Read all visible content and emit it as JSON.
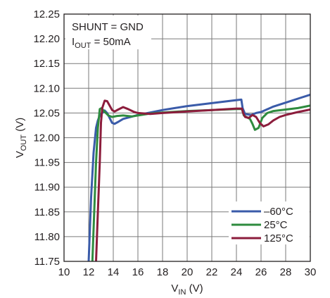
{
  "chart_data": {
    "type": "line",
    "xlabel": {
      "main": "V",
      "sub": "IN",
      "unit": " (V)"
    },
    "ylabel": {
      "main": "V",
      "sub": "OUT",
      "unit": " (V)"
    },
    "xlim": [
      10,
      30
    ],
    "ylim": [
      11.75,
      12.25
    ],
    "x_ticks": [
      "10",
      "12",
      "14",
      "16",
      "18",
      "20",
      "22",
      "24",
      "26",
      "28",
      "30"
    ],
    "y_ticks": [
      "12.25",
      "12.20",
      "12.15",
      "12.10",
      "12.05",
      "12.00",
      "11.95",
      "11.90",
      "11.85",
      "11.80",
      "11.75"
    ],
    "grid": true,
    "annotations": [
      {
        "main": "SHUNT = GND",
        "sub": "",
        "rest": ""
      },
      {
        "main": "I",
        "sub": "OUT",
        "rest": " = 50mA"
      }
    ],
    "legend_position": "bottom-right",
    "series": [
      {
        "name": "–60°C",
        "color": "#3a5ba9",
        "points": [
          [
            12.0,
            11.75
          ],
          [
            12.2,
            11.88
          ],
          [
            12.4,
            11.97
          ],
          [
            12.6,
            12.02
          ],
          [
            12.75,
            12.035
          ],
          [
            12.9,
            12.045
          ],
          [
            13.1,
            12.05
          ],
          [
            13.3,
            12.055
          ],
          [
            13.5,
            12.05
          ],
          [
            13.7,
            12.04
          ],
          [
            13.9,
            12.03
          ],
          [
            14.1,
            12.028
          ],
          [
            14.4,
            12.032
          ],
          [
            14.8,
            12.038
          ],
          [
            15.4,
            12.042
          ],
          [
            16,
            12.046
          ],
          [
            17,
            12.051
          ],
          [
            18,
            12.056
          ],
          [
            19,
            12.06
          ],
          [
            20,
            12.064
          ],
          [
            21,
            12.067
          ],
          [
            22,
            12.07
          ],
          [
            23,
            12.073
          ],
          [
            24,
            12.076
          ],
          [
            24.4,
            12.077
          ],
          [
            24.5,
            12.06
          ],
          [
            24.7,
            12.048
          ],
          [
            25.2,
            12.046
          ],
          [
            25.6,
            12.05
          ],
          [
            26,
            12.052
          ],
          [
            27,
            12.063
          ],
          [
            28,
            12.071
          ],
          [
            29,
            12.079
          ],
          [
            30,
            12.087
          ]
        ]
      },
      {
        "name": "25°C",
        "color": "#2e8b3e",
        "points": [
          [
            12.3,
            11.75
          ],
          [
            12.45,
            11.85
          ],
          [
            12.6,
            11.95
          ],
          [
            12.75,
            12.02
          ],
          [
            12.9,
            12.058
          ],
          [
            13.05,
            12.06
          ],
          [
            13.2,
            12.055
          ],
          [
            13.4,
            12.05
          ],
          [
            13.6,
            12.045
          ],
          [
            13.9,
            12.042
          ],
          [
            14.3,
            12.044
          ],
          [
            14.8,
            12.045
          ],
          [
            15.5,
            12.043
          ],
          [
            16,
            12.045
          ],
          [
            17,
            12.049
          ],
          [
            18,
            12.051
          ],
          [
            20,
            12.054
          ],
          [
            22,
            12.056
          ],
          [
            24,
            12.058
          ],
          [
            24.45,
            12.058
          ],
          [
            24.6,
            12.045
          ],
          [
            24.8,
            12.042
          ],
          [
            25.1,
            12.038
          ],
          [
            25.3,
            12.028
          ],
          [
            25.5,
            12.016
          ],
          [
            25.8,
            12.02
          ],
          [
            26.1,
            12.04
          ],
          [
            26.5,
            12.05
          ],
          [
            27,
            12.054
          ],
          [
            28,
            12.057
          ],
          [
            29,
            12.06
          ],
          [
            30,
            12.065
          ]
        ]
      },
      {
        "name": "125°C",
        "color": "#8c1d3c",
        "points": [
          [
            12.6,
            11.75
          ],
          [
            12.75,
            11.85
          ],
          [
            12.9,
            11.95
          ],
          [
            13.0,
            12.03
          ],
          [
            13.1,
            12.06
          ],
          [
            13.3,
            12.075
          ],
          [
            13.5,
            12.074
          ],
          [
            13.7,
            12.065
          ],
          [
            13.9,
            12.056
          ],
          [
            14.1,
            12.053
          ],
          [
            14.4,
            12.057
          ],
          [
            14.8,
            12.062
          ],
          [
            15.2,
            12.058
          ],
          [
            15.7,
            12.052
          ],
          [
            16,
            12.05
          ],
          [
            17,
            12.048
          ],
          [
            18,
            12.05
          ],
          [
            20,
            12.053
          ],
          [
            22,
            12.056
          ],
          [
            24,
            12.059
          ],
          [
            24.45,
            12.059
          ],
          [
            24.55,
            12.05
          ],
          [
            24.7,
            12.042
          ],
          [
            25.0,
            12.04
          ],
          [
            25.3,
            12.046
          ],
          [
            25.6,
            12.042
          ],
          [
            25.9,
            12.03
          ],
          [
            26.2,
            12.023
          ],
          [
            26.6,
            12.027
          ],
          [
            27,
            12.035
          ],
          [
            27.5,
            12.042
          ],
          [
            28,
            12.046
          ],
          [
            29,
            12.052
          ],
          [
            30,
            12.057
          ]
        ]
      }
    ]
  }
}
